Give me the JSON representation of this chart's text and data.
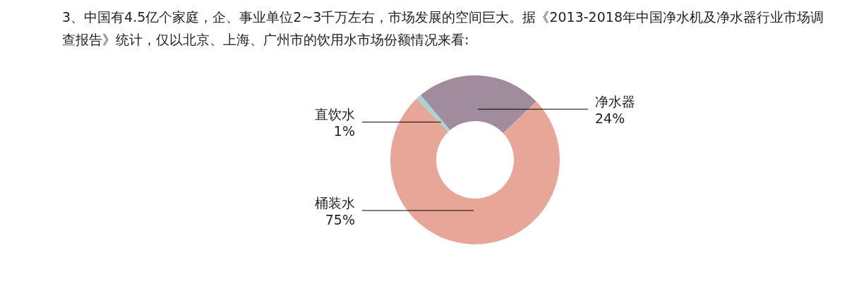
{
  "chart_data": {
    "type": "donut",
    "title": "3、中国有4.5亿个家庭，企、事业单位2~3千万左右，市场发展的空间巨大。据《2013-2018年中国净水机及净水器行业市场调查报告》统计，仅以北京、上海、广州市的饮用水市场份额情况来看:",
    "categories": [
      "净水器",
      "桶装水",
      "直饮水"
    ],
    "values": [
      24,
      75,
      1
    ],
    "colors": [
      "#a08c9c",
      "#e8a698",
      "#a8d4d8"
    ],
    "value_labels": [
      "24%",
      "75%",
      "1%"
    ]
  }
}
